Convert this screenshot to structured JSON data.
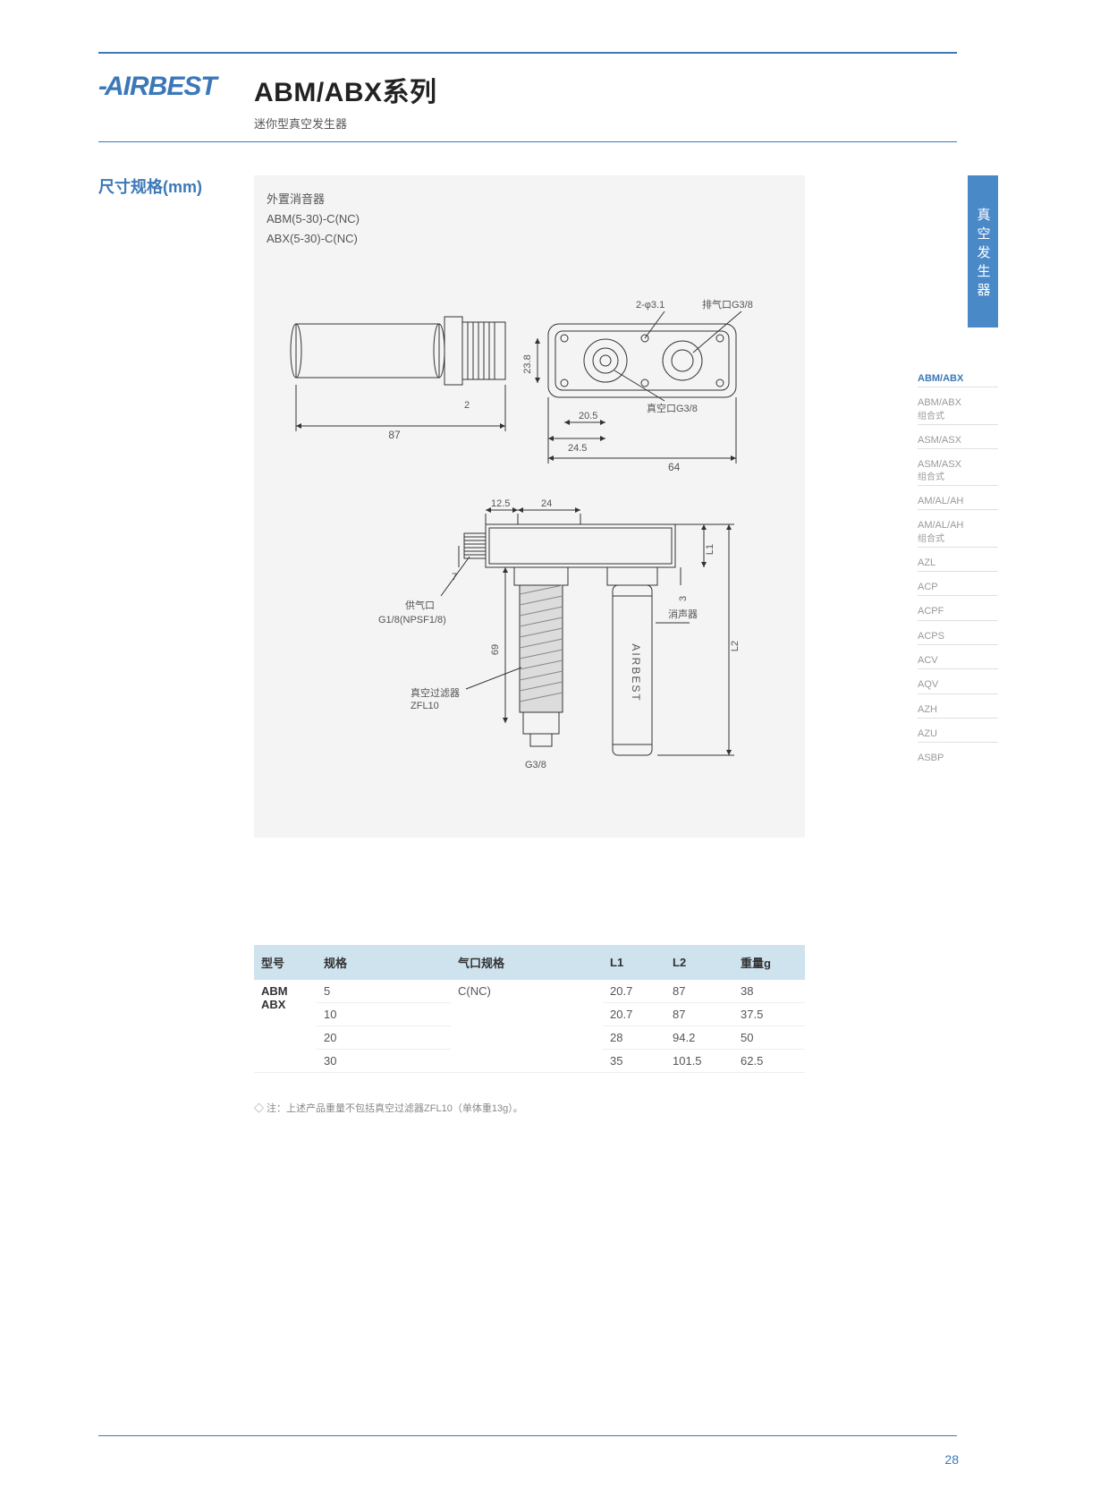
{
  "brand": "AIRBEST",
  "heading": {
    "title": "ABM/ABX系列",
    "subtitle": "迷你型真空发生器"
  },
  "section_label": "尺寸规格(mm)",
  "diagram_header": {
    "line1": "外置消音器",
    "line2": "ABM(5-30)-C(NC)",
    "line3": "ABX(5-30)-C(NC)"
  },
  "diagram_labels": {
    "dim_87": "87",
    "dim_2": "2",
    "dim_23_8": "23.8",
    "dim_20_5": "20.5",
    "dim_24_5": "24.5",
    "dim_64": "64",
    "dim_2phi31": "2-φ3.1",
    "exhaust_port": "排气口G3/8",
    "vacuum_port": "真空口G3/8",
    "dim_12_5": "12.5",
    "dim_24": "24",
    "dim_7": "7",
    "supply_port": "供气口",
    "supply_thread": "G1/8(NPSF1/8)",
    "dim_69": "69",
    "filter_label": "真空过滤器",
    "filter_model": "ZFL10",
    "g38": "G3/8",
    "silencer": "消声器",
    "dim_3": "3",
    "dim_L1": "L1",
    "dim_L2": "L2",
    "airbest_vert": "AIRBEST"
  },
  "sidebar": {
    "tab": "真空发生器",
    "items": [
      {
        "label": "ABM/ABX",
        "active": true
      },
      {
        "label": "ABM/ABX",
        "sub": "组合式"
      },
      {
        "label": "ASM/ASX"
      },
      {
        "label": "ASM/ASX",
        "sub": "组合式"
      },
      {
        "label": "AM/AL/AH"
      },
      {
        "label": "AM/AL/AH",
        "sub": "组合式"
      },
      {
        "label": "AZL"
      },
      {
        "label": "ACP"
      },
      {
        "label": "ACPF"
      },
      {
        "label": "ACPS"
      },
      {
        "label": "ACV"
      },
      {
        "label": "AQV"
      },
      {
        "label": "AZH"
      },
      {
        "label": "AZU"
      },
      {
        "label": "ASBP"
      }
    ]
  },
  "table": {
    "columns": [
      "型号",
      "规格",
      "气口规格",
      "L1",
      "L2",
      "重量g"
    ],
    "col_widths": [
      "70px",
      "150px",
      "170px",
      "70px",
      "76px",
      "80px"
    ],
    "model": "ABM\nABX",
    "port_spec": "C(NC)",
    "rows": [
      {
        "spec": "5",
        "l1": "20.7",
        "l2": "87",
        "wt": "38"
      },
      {
        "spec": "10",
        "l1": "20.7",
        "l2": "87",
        "wt": "37.5"
      },
      {
        "spec": "20",
        "l1": "28",
        "l2": "94.2",
        "wt": "50"
      },
      {
        "spec": "30",
        "l1": "35",
        "l2": "101.5",
        "wt": "62.5"
      }
    ]
  },
  "note": "◇ 注：上述产品重量不包括真空过滤器ZFL10（单体重13g）。",
  "page_number": "28",
  "colors": {
    "brand_blue": "#3c78b8",
    "tab_blue": "#4a89c8",
    "table_header_bg": "#cfe3ef",
    "diagram_bg": "#f4f4f4"
  }
}
